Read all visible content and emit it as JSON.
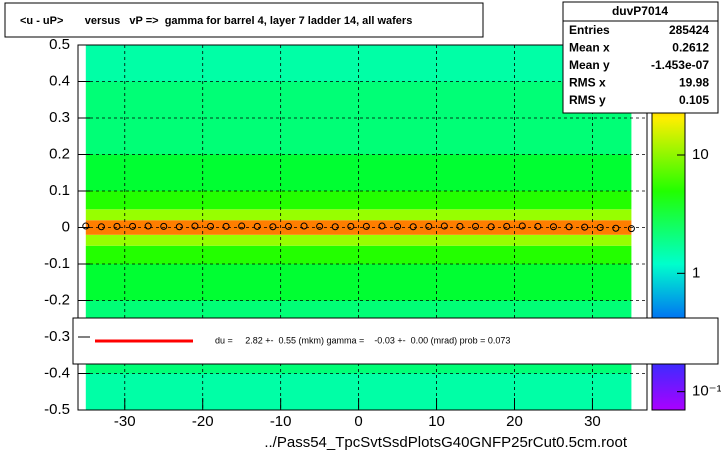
{
  "chart_data": {
    "type": "heatmap",
    "title": "<u - uP>       versus   vP =>  gamma for barrel 4, layer 7 ladder 14, all wafers",
    "x_label": "../Pass54_TpcSvtSsdPlotsG40GNFP25rCut0.5cm.root",
    "xlim": [
      -36,
      37
    ],
    "ylim": [
      -0.5,
      0.5
    ],
    "xticks": [
      -30,
      -20,
      -10,
      0,
      10,
      20,
      30
    ],
    "yticks": [
      -0.5,
      -0.4,
      -0.3,
      -0.2,
      -0.1,
      0,
      0.1,
      0.2,
      0.3,
      0.4,
      0.5
    ],
    "grid": true,
    "x_bins": [
      -35,
      35
    ],
    "y_bins": [
      -0.5,
      -0.4,
      -0.3,
      -0.2,
      -0.1,
      -0.05,
      -0.02,
      0.02,
      0.05,
      0.1,
      0.2,
      0.3,
      0.4,
      0.5
    ],
    "z": [
      1.5,
      2,
      2,
      3,
      5,
      10,
      40,
      10,
      5,
      3,
      2,
      2,
      1.5
    ],
    "log_z": true,
    "zlim": [
      0.07,
      85
    ],
    "zticks": [
      {
        "value": 0.1,
        "label": "10⁻¹"
      },
      1,
      10
    ],
    "profile": {
      "color": "#000000",
      "x": [
        -35,
        -33,
        -31,
        -29,
        -27,
        -25,
        -23,
        -21,
        -19,
        -17,
        -15,
        -13,
        -11,
        -9,
        -7,
        -5,
        -3,
        -1,
        1,
        3,
        5,
        7,
        9,
        11,
        13,
        15,
        17,
        19,
        21,
        23,
        25,
        27,
        29,
        31,
        33,
        35
      ],
      "y": [
        0.004,
        0.002,
        0.003,
        0.003,
        0.004,
        0.003,
        0.002,
        0.004,
        0.003,
        0.003,
        0.004,
        0.003,
        0.002,
        0.003,
        0.004,
        0.003,
        0.002,
        0.003,
        0.003,
        0.004,
        0.003,
        0.002,
        0.003,
        0.004,
        0.003,
        0.003,
        0.002,
        0.003,
        0.004,
        0.003,
        0.002,
        0.002,
        0.001,
        0.0,
        -0.002,
        -0.003
      ]
    },
    "stats": {
      "title": "duvP7014",
      "rows": [
        [
          "Entries",
          "285424"
        ],
        [
          "Mean x",
          "0.2612"
        ],
        [
          "Mean y",
          "-1.453e-07"
        ],
        [
          "RMS x",
          "19.98"
        ],
        [
          "RMS y",
          "0.105"
        ]
      ]
    },
    "fit": {
      "color": "#ff0000",
      "label": "du =     2.82 +-  0.55 (mkm) gamma =    -0.03 +-  0.00 (mrad) prob = 0.073"
    }
  }
}
